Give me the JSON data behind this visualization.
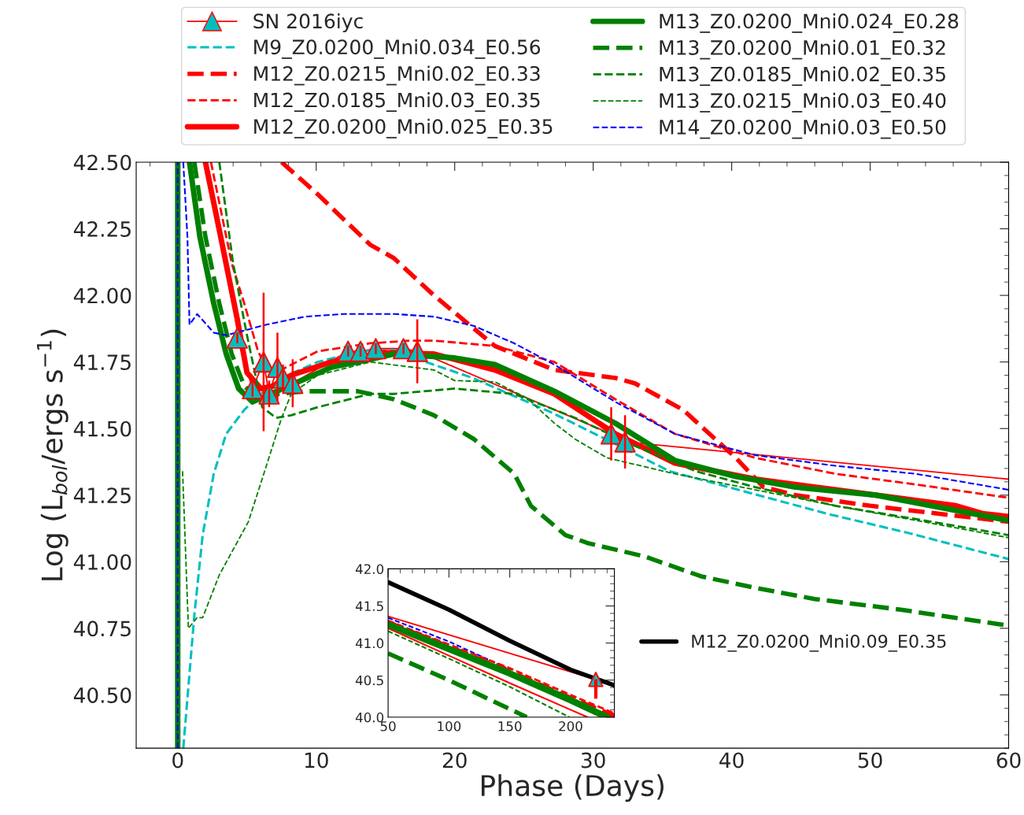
{
  "chart_data": [
    {
      "type": "line",
      "xlabel": "Phase (Days)",
      "ylabel": "Log (L$_{bol}$/ergs s$^{−1}$)",
      "xlim": [
        -3,
        60
      ],
      "ylim": [
        40.3,
        42.5
      ],
      "xticks": [
        0,
        10,
        20,
        30,
        40,
        50,
        60
      ],
      "yticks": [
        {
          "value": 40.5,
          "label": "40.50"
        },
        {
          "value": 40.75,
          "label": "40.75"
        },
        {
          "value": 41.0,
          "label": "41.00"
        },
        {
          "value": 41.25,
          "label": "41.25"
        },
        {
          "value": 41.5,
          "label": "41.50"
        },
        {
          "value": 41.75,
          "label": "41.75"
        },
        {
          "value": 42.0,
          "label": "42.00"
        },
        {
          "value": 42.25,
          "label": "42.25"
        },
        {
          "value": 42.5,
          "label": "42.50"
        }
      ],
      "grid": false,
      "legend": "top",
      "series": [
        {
          "name": "SN 2016iyc",
          "color": "#ff0000",
          "marker": "triangle",
          "line_style": "solid",
          "x": [
            4.3,
            5.4,
            6.2,
            6.6,
            7.2,
            7.6,
            8.3,
            12.3,
            13.2,
            14.3,
            16.3,
            17.3,
            31.3,
            32.3
          ],
          "values": [
            41.84,
            41.65,
            41.75,
            41.63,
            41.73,
            41.69,
            41.67,
            41.79,
            41.79,
            41.8,
            41.8,
            41.79,
            41.48,
            41.45
          ],
          "errors": [
            0.02,
            0.03,
            0.26,
            0.05,
            0.13,
            0.05,
            0.09,
            0.02,
            0.02,
            0.02,
            0.02,
            0.12,
            0.1,
            0.1
          ],
          "colors": [
            "#00bfbf",
            "#00bfbf",
            "#00bfbf",
            "#00bfbf",
            "#00bfbf",
            "#00bfbf",
            "#00bfbf",
            "#00bfbf",
            "#00bfbf",
            "#00bfbf",
            "#00bfbf",
            "#00bfbf",
            "#00bfbf",
            "#00bfbf"
          ]
        },
        {
          "color": "#ff0000",
          "line_style": "solid",
          "x": [
            32.3,
            60
          ],
          "values": [
            41.45,
            41.31
          ]
        },
        {
          "name": "M9_Z0.0200_Mni0.034_E0.56",
          "color": "#00bfbf",
          "line_style": "dashed",
          "x": [
            0.4,
            0.8,
            1.2,
            1.8,
            2.6,
            3.5,
            4.8,
            6.0,
            7.5,
            10.1,
            13.2,
            15.6,
            17.9,
            21.3,
            27,
            31.3,
            35.5,
            41.2,
            46.9,
            52.6,
            60
          ],
          "values": [
            40.3,
            40.55,
            40.8,
            41.1,
            41.33,
            41.48,
            41.57,
            41.63,
            41.69,
            41.75,
            41.79,
            41.795,
            41.75,
            41.69,
            41.56,
            41.45,
            41.34,
            41.26,
            41.18,
            41.11,
            41.01
          ]
        },
        {
          "name": "M12_Z0.0215_Mni0.02_E0.33",
          "color": "#ff0000",
          "line_style": "dashed",
          "x": [
            7.5,
            10.1,
            13.9,
            15.6,
            18.5,
            22.9,
            27.2,
            31.6,
            33.0,
            36.5,
            40.3,
            42.3,
            44.6,
            50,
            60
          ],
          "values": [
            42.5,
            42.38,
            42.19,
            42.14,
            42.0,
            41.81,
            41.72,
            41.69,
            41.67,
            41.57,
            41.39,
            41.28,
            41.25,
            41.21,
            41.15
          ]
        },
        {
          "name": "M12_Z0.0185_Mni0.03_E0.35",
          "color": "#ff0000",
          "line_style": "dashed",
          "x": [
            2.4,
            3.9,
            4.8,
            5.8,
            6.7,
            10.1,
            13.9,
            16.8,
            18.5,
            22.9,
            27.2,
            31.6,
            35.9,
            41.7,
            47.5,
            53.3,
            60
          ],
          "values": [
            42.5,
            42.12,
            41.97,
            41.79,
            41.7,
            41.79,
            41.82,
            41.83,
            41.83,
            41.81,
            41.75,
            41.61,
            41.48,
            41.39,
            41.33,
            41.29,
            41.24
          ]
        },
        {
          "name": "M12_Z0.0200_Mni0.025_E0.35",
          "color": "#ff0000",
          "line_style": "solid",
          "x": [
            2.0,
            3.1,
            4.3,
            5.0,
            6.0,
            6.9,
            8.2,
            11.1,
            14.9,
            18.5,
            22.9,
            27.2,
            31.6,
            35.9,
            41.7,
            47.5,
            56.2,
            58.2,
            60
          ],
          "values": [
            42.5,
            42.22,
            41.91,
            41.71,
            41.65,
            41.66,
            41.7,
            41.75,
            41.785,
            41.78,
            41.72,
            41.63,
            41.48,
            41.37,
            41.31,
            41.27,
            41.21,
            41.18,
            41.17
          ]
        },
        {
          "name": "M13_Z0.0200_Mni0.024_E0.28",
          "color": "#008000",
          "line_style": "solid",
          "x": [
            0.0,
            0.0,
            0.4,
            0.85,
            1.6,
            2.6,
            3.5,
            4.4,
            5.4,
            11.1,
            13.9,
            15.6,
            20.0,
            22.9,
            27.2,
            31.6,
            35.9,
            40.3,
            44.6,
            50.4,
            60
          ],
          "values": [
            40.3,
            42.5,
            null,
            42.5,
            42.22,
            41.97,
            41.78,
            41.65,
            41.6,
            41.73,
            41.76,
            41.78,
            41.765,
            41.74,
            41.64,
            41.52,
            41.38,
            41.32,
            41.28,
            41.25,
            41.155
          ]
        },
        {
          "name": "M13_Z0.0200_Mni0.01_E0.32",
          "color": "#008000",
          "line_style": "dashed",
          "x": [
            1.2,
            2.0,
            3.0,
            3.9,
            4.8,
            5.8,
            7.3,
            9.2,
            13.0,
            15.6,
            18.5,
            21.4,
            24.3,
            25.5,
            28.0,
            29.6,
            33.7,
            37.8,
            41.9,
            46.0,
            52.2,
            60
          ],
          "values": [
            42.5,
            42.22,
            41.97,
            41.78,
            41.66,
            41.61,
            41.63,
            41.64,
            41.64,
            41.61,
            41.55,
            41.46,
            41.33,
            41.21,
            41.1,
            41.07,
            41.02,
            40.945,
            40.9,
            40.86,
            40.82,
            40.76
          ]
        },
        {
          "name": "M13_Z0.0185_Mni0.02_E0.35",
          "color": "#008000",
          "line_style": "dashed",
          "x": [
            3.0,
            4.0,
            5.0,
            6.1,
            7.1,
            8.2,
            10.1,
            13.9,
            15.6,
            20.0,
            24.3,
            28.7,
            33.0,
            37.4,
            41.7,
            47.5,
            53.3,
            60
          ],
          "values": [
            42.5,
            42.12,
            41.85,
            41.58,
            41.54,
            41.55,
            41.58,
            41.63,
            41.63,
            41.65,
            41.63,
            41.54,
            41.435,
            41.34,
            41.28,
            41.21,
            41.16,
            41.1
          ]
        },
        {
          "name": "M13_Z0.0215_Mni0.03_E0.40",
          "color": "#008000",
          "line_style": "dashed",
          "x": [
            0.35,
            0.77,
            1.4,
            1.8,
            3.0,
            5.1,
            6.4,
            7.5,
            8.2,
            10.1,
            13.9,
            18.5,
            20.0,
            22.9,
            25.2,
            27.2,
            28.7,
            31.0,
            35.9,
            41.7,
            47.5,
            53.3,
            60
          ],
          "values": [
            41.34,
            40.75,
            40.79,
            40.79,
            40.95,
            41.15,
            41.36,
            41.54,
            41.63,
            41.7,
            41.75,
            41.72,
            41.68,
            41.675,
            41.615,
            41.52,
            41.46,
            41.39,
            41.33,
            41.27,
            41.21,
            41.155,
            41.09
          ]
        },
        {
          "name": "M14_Z0.0200_Mni0.03_E0.50",
          "color": "#0000ff",
          "line_style": "dashed",
          "x": [
            0.0,
            0.0,
            0.2,
            0.4,
            0.7,
            0.85,
            1.4,
            2.6,
            3.5,
            6.4,
            9.2,
            12.0,
            15.7,
            18.5,
            21.4,
            24.3,
            27.2,
            31.6,
            35.9,
            41.7,
            47.5,
            53.3,
            60
          ],
          "values": [
            40.3,
            42.5,
            null,
            42.5,
            42.22,
            41.89,
            41.93,
            41.86,
            41.85,
            41.89,
            41.92,
            41.93,
            41.93,
            41.92,
            41.885,
            41.82,
            41.74,
            41.6,
            41.48,
            41.4,
            41.36,
            41.33,
            41.27
          ]
        }
      ]
    },
    {
      "type": "line",
      "xlim": [
        50,
        236
      ],
      "ylim": [
        40.0,
        42.0
      ],
      "xticks": [
        50,
        100,
        150,
        200
      ],
      "yticks": [
        {
          "value": 40.0,
          "label": "40.0"
        },
        {
          "value": 40.5,
          "label": "40.5"
        },
        {
          "value": 41.0,
          "label": "41.0"
        },
        {
          "value": 41.5,
          "label": "41.5"
        },
        {
          "value": 42.0,
          "label": "42.0"
        }
      ],
      "grid": false,
      "legend": "right",
      "series": [
        {
          "color": "#ff0000",
          "line_style": "solid",
          "x": [
            50,
            220.7
          ],
          "values": [
            41.36,
            40.51
          ]
        },
        {
          "color": "#0000ff",
          "line_style": "dashed",
          "x": [
            50,
            100,
            146.7
          ],
          "values": [
            41.34,
            41.02,
            40.67
          ]
        },
        {
          "color": "#ff0000",
          "line_style": "dashed",
          "x": [
            50,
            100,
            150,
            200,
            235
          ],
          "values": [
            41.3,
            40.98,
            40.66,
            40.3,
            40.06
          ]
        },
        {
          "color": "#ff0000",
          "line_style": "dashed",
          "x": [
            50,
            100,
            150,
            200,
            236
          ],
          "values": [
            41.28,
            40.95,
            40.62,
            40.26,
            40.02
          ]
        },
        {
          "color": "#ff0000",
          "line_style": "solid",
          "x": [
            50,
            100,
            150,
            200,
            214
          ],
          "values": [
            41.2,
            40.83,
            40.46,
            40.1,
            40.0
          ]
        },
        {
          "color": "#008000",
          "line_style": "solid",
          "x": [
            50,
            100,
            150,
            200,
            230
          ],
          "values": [
            41.25,
            40.92,
            40.59,
            40.23,
            40.0
          ]
        },
        {
          "color": "#008000",
          "line_style": "dashed",
          "x": [
            50,
            100,
            150,
            199
          ],
          "values": [
            41.16,
            40.79,
            40.41,
            40.0
          ]
        },
        {
          "color": "#008000",
          "line_style": "dashed",
          "x": [
            50,
            100,
            164
          ],
          "values": [
            40.86,
            40.5,
            40.0
          ]
        },
        {
          "name": "M12_Z0.0200_Mni0.09_E0.35",
          "color": "#000000",
          "line_style": "solid",
          "x": [
            50,
            100,
            150,
            200,
            236
          ],
          "values": [
            41.82,
            41.45,
            41.03,
            40.64,
            40.43
          ]
        },
        {
          "color": "#ff0000",
          "marker": "triangle",
          "x": [
            220.7
          ],
          "values": [
            40.51
          ],
          "errors": [
            [
              40.25,
              40.51
            ]
          ],
          "colors": [
            "#00bfbf"
          ]
        }
      ]
    }
  ]
}
